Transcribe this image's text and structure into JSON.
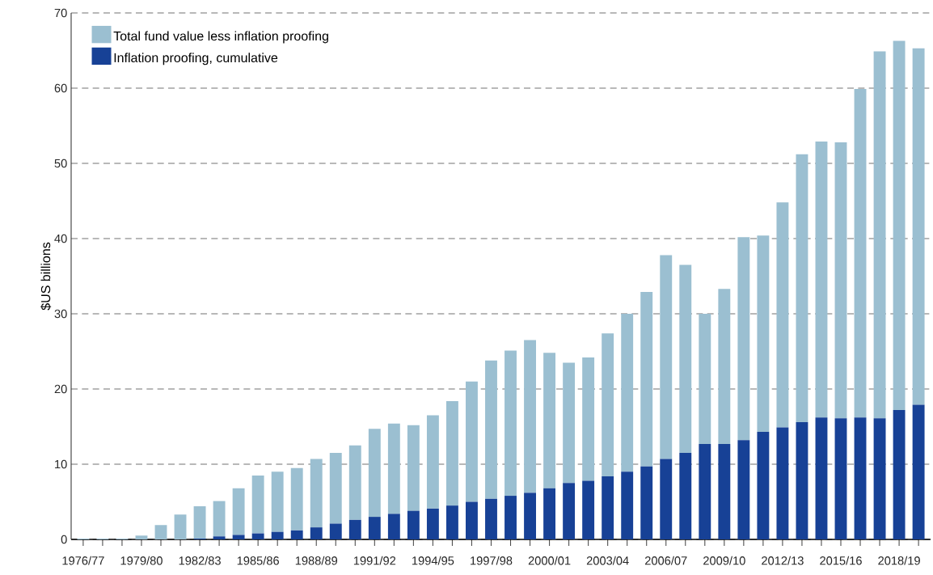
{
  "chart_data": {
    "type": "bar",
    "stacked": true,
    "ylabel": "$US billions",
    "categories": [
      "1976/77",
      null,
      null,
      "1979/80",
      null,
      null,
      "1982/83",
      null,
      null,
      "1985/86",
      null,
      null,
      "1988/89",
      null,
      null,
      "1991/92",
      null,
      null,
      "1994/95",
      null,
      null,
      "1997/98",
      null,
      null,
      "2000/01",
      null,
      null,
      "2003/04",
      null,
      null,
      "2006/07",
      null,
      null,
      "2009/10",
      null,
      null,
      "2012/13",
      null,
      null,
      "2015/16",
      null,
      null,
      "2018/19",
      null
    ],
    "series": [
      {
        "name": "Inflation proofing, cumulative",
        "color": "#174196",
        "values": [
          0,
          0,
          0,
          0,
          0,
          0,
          0.1,
          0.4,
          0.6,
          0.8,
          1.0,
          1.2,
          1.6,
          2.1,
          2.6,
          3.0,
          3.4,
          3.8,
          4.1,
          4.5,
          5.0,
          5.4,
          5.8,
          6.2,
          6.8,
          7.5,
          7.8,
          8.4,
          9.0,
          9.7,
          10.7,
          11.5,
          12.7,
          12.7,
          13.2,
          14.3,
          14.9,
          15.6,
          16.2,
          16.1,
          16.2,
          16.1,
          17.2,
          17.9
        ]
      },
      {
        "name": "Total fund value less inflation proofing",
        "color": "#9bbfd1",
        "values": [
          0.1,
          0.1,
          0.1,
          0.5,
          1.9,
          3.3,
          4.3,
          4.7,
          6.2,
          7.7,
          8.0,
          8.3,
          9.1,
          9.4,
          9.9,
          11.7,
          12.0,
          11.4,
          12.4,
          13.9,
          16.0,
          18.4,
          19.3,
          20.3,
          18.0,
          16.0,
          16.4,
          19.0,
          21.0,
          23.2,
          27.1,
          25.0,
          17.3,
          20.6,
          27.0,
          26.1,
          29.9,
          35.6,
          36.7,
          36.7,
          43.7,
          48.8,
          49.1,
          47.4
        ]
      }
    ],
    "ylim": [
      0,
      70
    ],
    "yticks": [
      0,
      10,
      20,
      30,
      40,
      50,
      60,
      70
    ],
    "grid": "y",
    "legend": "top left"
  }
}
